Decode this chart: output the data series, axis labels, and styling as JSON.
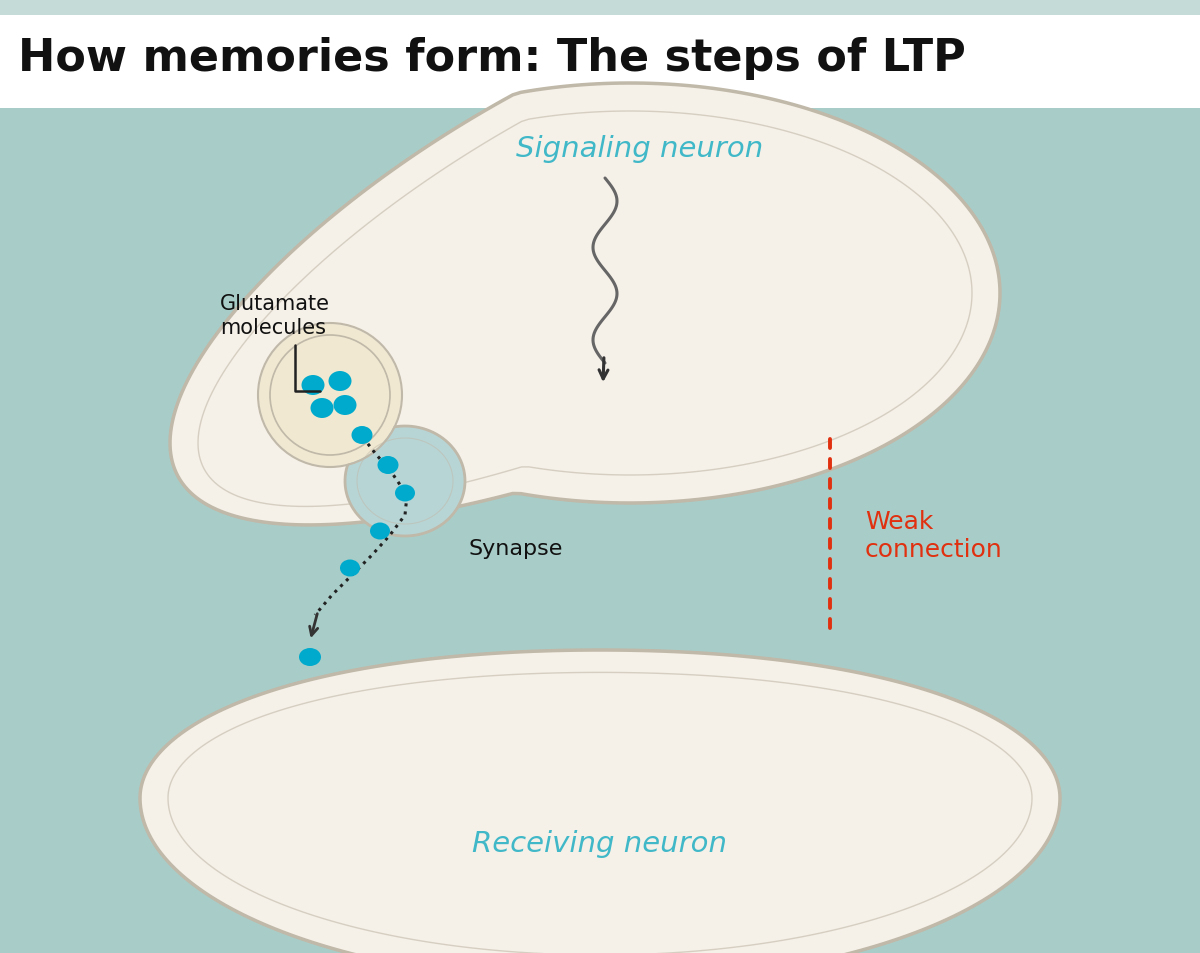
{
  "title": "How memories form: The steps of LTP",
  "title_fontsize": 32,
  "title_color": "#111111",
  "main_bg": "#a8cdc8",
  "neuron_fill": "#f5f0e8",
  "neuron_edge": "#c0b8a8",
  "vesicle_fill": "#f0e8d0",
  "synapse_knob_fill": "#b8d5d5",
  "glutamate_color": "#00aacc",
  "signaling_label": "Signaling neuron",
  "signaling_label_color": "#40b8c8",
  "receiving_label": "Receiving neuron",
  "receiving_label_color": "#40b8c8",
  "synapse_label": "Synapse",
  "synapse_label_color": "#111111",
  "glutamate_label": "Glutamate\nmolecules",
  "glutamate_label_color": "#111111",
  "weak_connection_label": "Weak\nconnection",
  "weak_connection_color": "#e03010",
  "arrow_color": "#333333",
  "top_stripe_color": "#c5dbd8",
  "title_bg": "#ffffff"
}
